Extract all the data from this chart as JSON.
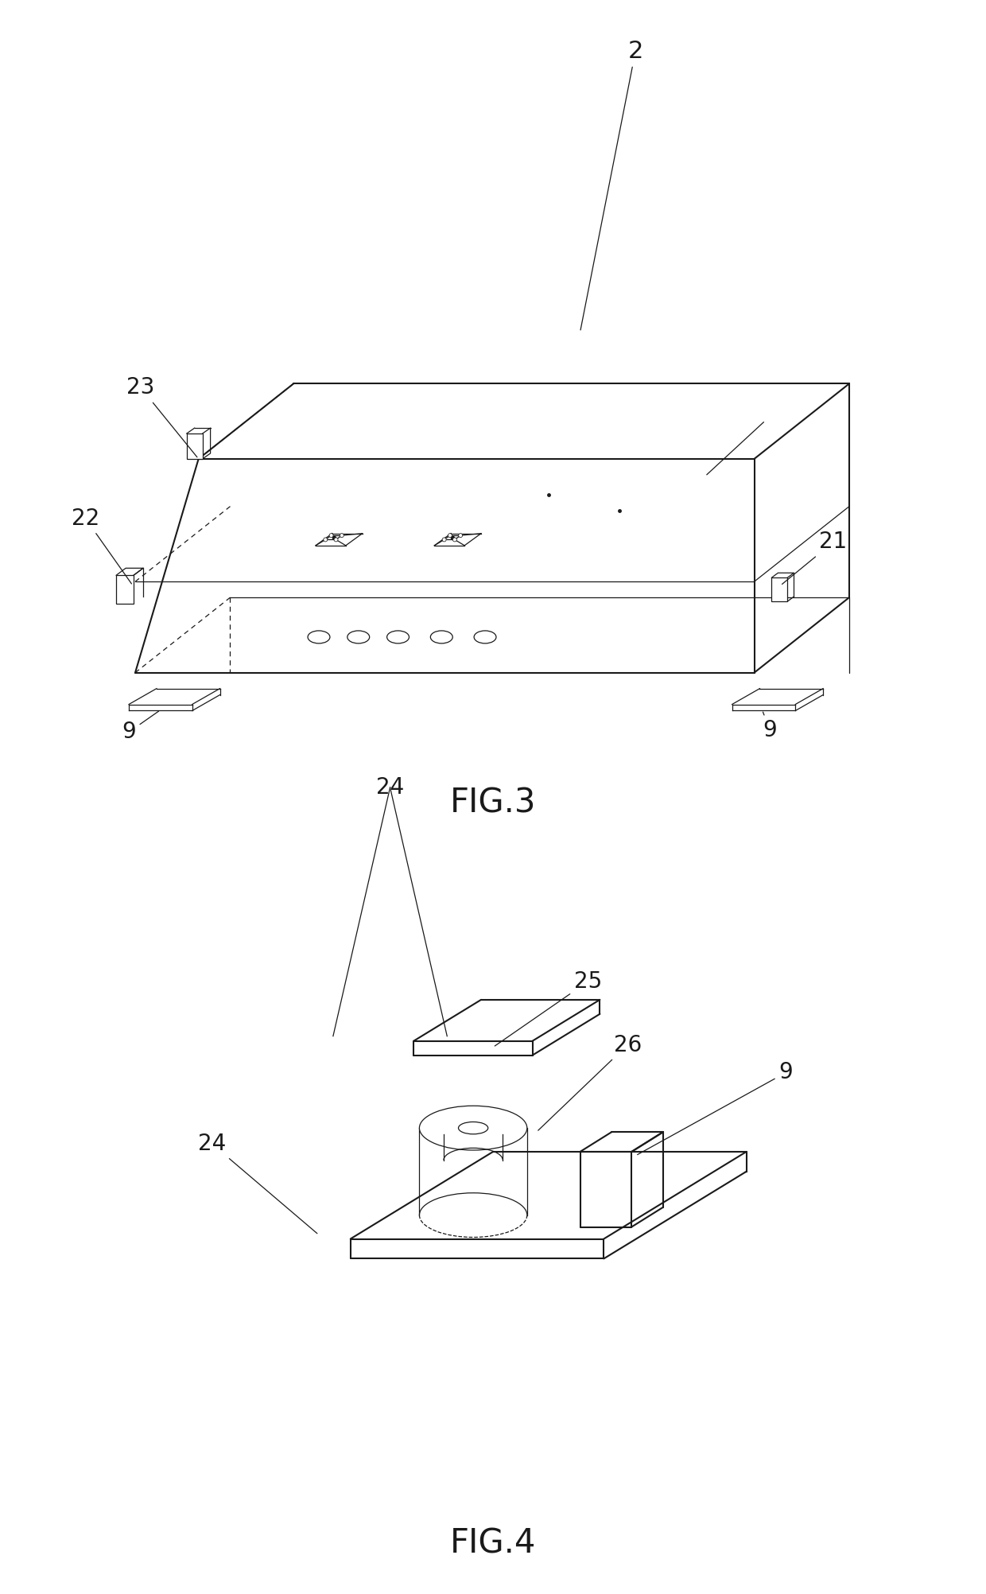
{
  "fig_width": 12.4,
  "fig_height": 20.04,
  "background_color": "#ffffff",
  "line_color": "#1a1a1a",
  "lw_main": 1.5,
  "lw_thin": 0.9,
  "label_fontsize": 20,
  "caption_fontsize": 30,
  "fig3_caption": "FIG.3",
  "fig4_caption": "FIG.4"
}
